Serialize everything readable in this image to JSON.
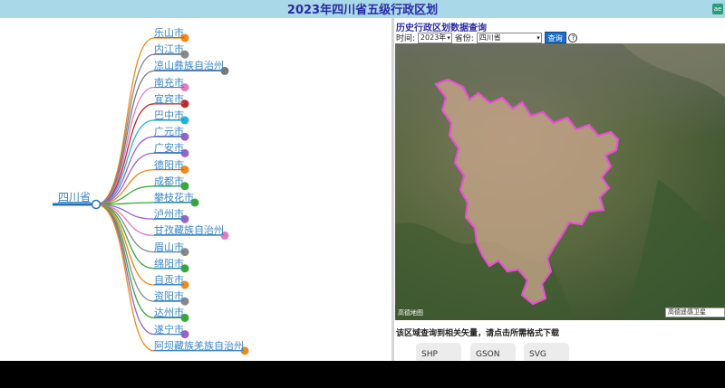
{
  "header": {
    "title": "2023年四川省五级行政区划",
    "corner_icon": "ae"
  },
  "tree": {
    "root": "四川省",
    "children": [
      {
        "label": "乐山市",
        "color": "#ef8a17"
      },
      {
        "label": "内江市",
        "color": "#888888"
      },
      {
        "label": "凉山彝族自治州",
        "color": "#777777"
      },
      {
        "label": "南充市",
        "color": "#e27ac1"
      },
      {
        "label": "宜宾市",
        "color": "#c0292a"
      },
      {
        "label": "巴中市",
        "color": "#20b7d0"
      },
      {
        "label": "广元市",
        "color": "#9963c6"
      },
      {
        "label": "广安市",
        "color": "#9963c6"
      },
      {
        "label": "德阳市",
        "color": "#ef8a17"
      },
      {
        "label": "成都市",
        "color": "#36a836"
      },
      {
        "label": "攀枝花市",
        "color": "#36a836"
      },
      {
        "label": "泸州市",
        "color": "#9963c6"
      },
      {
        "label": "甘孜藏族自治州",
        "color": "#e27ac1"
      },
      {
        "label": "眉山市",
        "color": "#888888"
      },
      {
        "label": "绵阳市",
        "color": "#36a836"
      },
      {
        "label": "自贡市",
        "color": "#ef8a17"
      },
      {
        "label": "资阳市",
        "color": "#888888"
      },
      {
        "label": "达州市",
        "color": "#36a836"
      },
      {
        "label": "遂宁市",
        "color": "#9963c6"
      },
      {
        "label": "阿坝藏族羌族自治州",
        "color": "#ef8a17"
      }
    ]
  },
  "panel": {
    "title": "历史行政区划数据查询",
    "time_label": "时间:",
    "year_value": "2023年",
    "province_label": "省份:",
    "province_value": "四川省",
    "query_button": "查询",
    "help_icon": "?",
    "map_layer": "高德遥感卫星",
    "map_provider": "高德",
    "map_logo": "高德地图",
    "download_text": "该区域查询到相关矢量，请点击所需格式下载",
    "download_buttons": [
      "SHP",
      "GSON",
      "SVG"
    ]
  },
  "colors": {
    "title_bar": "#a9d8e8",
    "title_text": "#2a2aa8",
    "link": "#3a86c8",
    "region_outline": "#e84fd6",
    "region_fill": "#c8a58a"
  }
}
